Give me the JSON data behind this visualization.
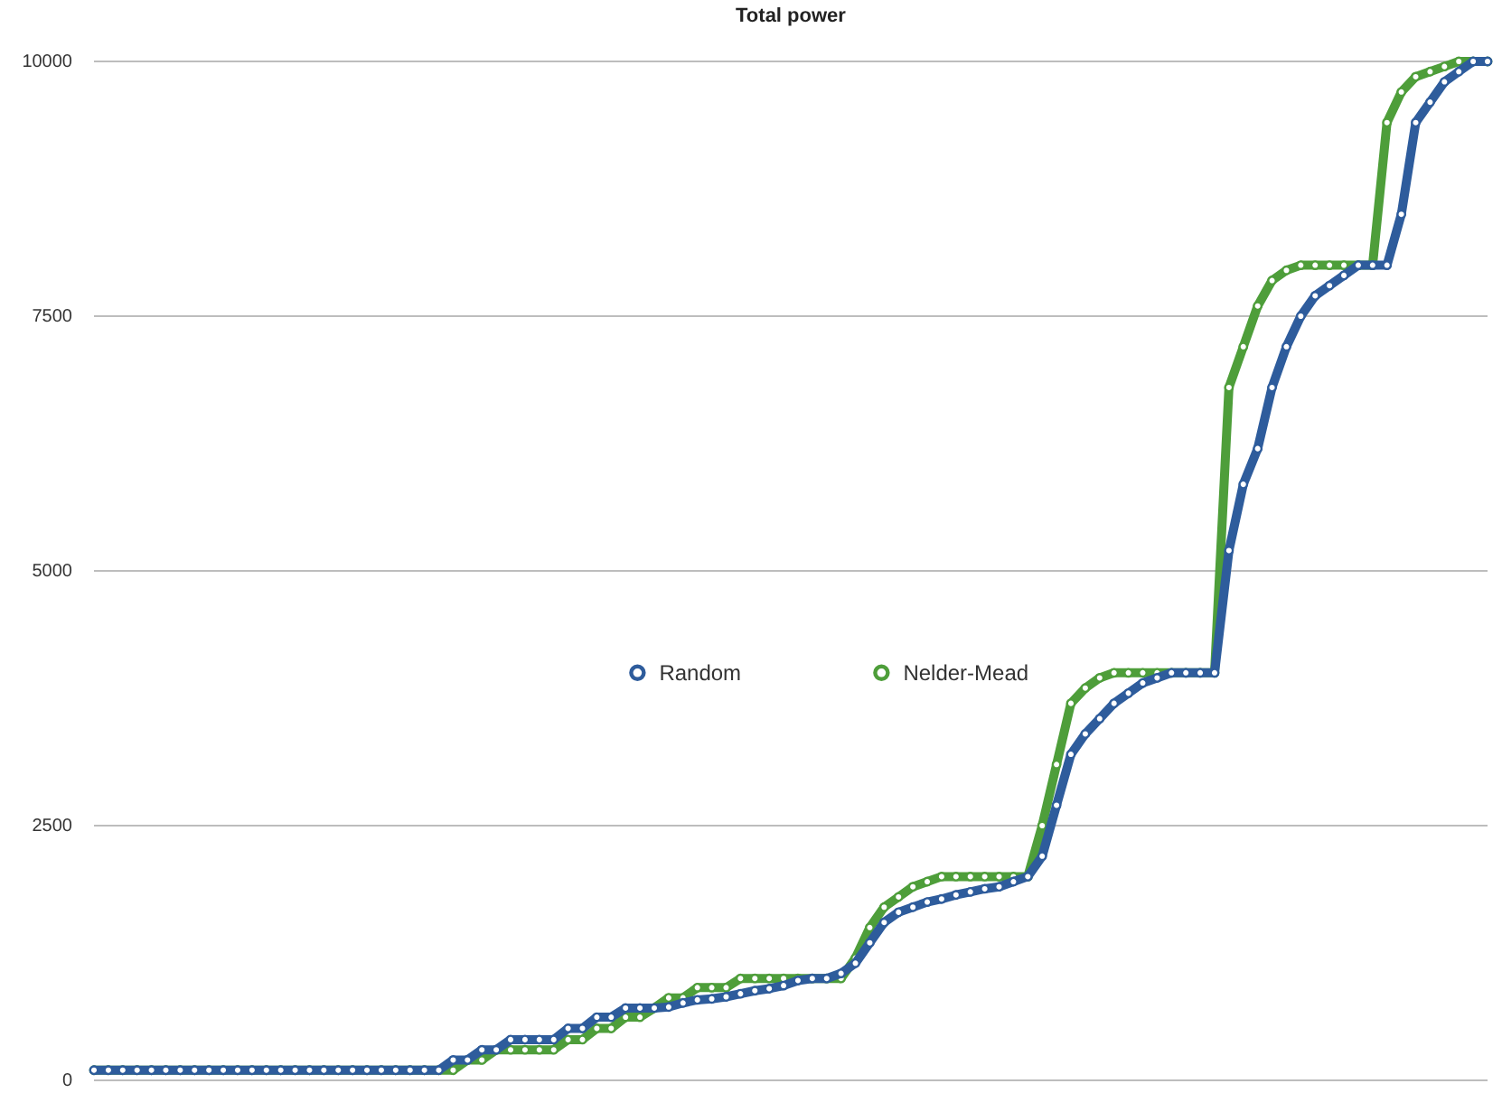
{
  "chart_data": {
    "type": "line",
    "title": "Total power",
    "categories": [
      null,
      null,
      null,
      null,
      null,
      null,
      null,
      null,
      null,
      null,
      null,
      null,
      null,
      null,
      null,
      null,
      null,
      null,
      null,
      null,
      null,
      null,
      null,
      null,
      null,
      null,
      null,
      null,
      null,
      null,
      null,
      null,
      null,
      null,
      null,
      null,
      null,
      null,
      null,
      null,
      null,
      null,
      null,
      null,
      null,
      null,
      null,
      null,
      null,
      null,
      null,
      null,
      null,
      null,
      null,
      null,
      null,
      null,
      null,
      null,
      null,
      null,
      null,
      null,
      null,
      null,
      null,
      null,
      null,
      null,
      null,
      null,
      null,
      null,
      null,
      null,
      null,
      null,
      null,
      null,
      null,
      null,
      null,
      null,
      null,
      null,
      null,
      null,
      null,
      null,
      null,
      null,
      null,
      null,
      null,
      null,
      null,
      null
    ],
    "series": [
      {
        "name": "Random",
        "color": "#2e5c9c",
        "values": [
          100,
          100,
          100,
          100,
          100,
          100,
          100,
          100,
          100,
          100,
          100,
          100,
          100,
          100,
          100,
          100,
          100,
          100,
          100,
          100,
          100,
          100,
          100,
          100,
          100,
          200,
          200,
          300,
          300,
          400,
          400,
          400,
          400,
          510,
          510,
          620,
          620,
          710,
          710,
          710,
          720,
          760,
          790,
          800,
          820,
          850,
          880,
          900,
          930,
          980,
          1000,
          1000,
          1050,
          1150,
          1350,
          1550,
          1650,
          1700,
          1750,
          1780,
          1820,
          1850,
          1880,
          1900,
          1950,
          2000,
          2200,
          2700,
          3200,
          3400,
          3550,
          3700,
          3800,
          3900,
          3950,
          4000,
          4000,
          4000,
          4000,
          5200,
          5850,
          6200,
          6800,
          7200,
          7500,
          7700,
          7800,
          7900,
          8000,
          8000,
          8000,
          8500,
          9400,
          9600,
          9800,
          9900,
          10000,
          10000
        ]
      },
      {
        "name": "Nelder-Mead",
        "color": "#4e9e3a",
        "values": [
          100,
          100,
          100,
          100,
          100,
          100,
          100,
          100,
          100,
          100,
          100,
          100,
          100,
          100,
          100,
          100,
          100,
          100,
          100,
          100,
          100,
          100,
          100,
          100,
          100,
          100,
          200,
          200,
          300,
          300,
          300,
          300,
          300,
          400,
          400,
          510,
          510,
          620,
          620,
          710,
          810,
          810,
          910,
          910,
          910,
          1000,
          1000,
          1000,
          1000,
          1000,
          1000,
          1000,
          1000,
          1200,
          1500,
          1700,
          1800,
          1900,
          1950,
          2000,
          2000,
          2000,
          2000,
          2000,
          2000,
          2000,
          2500,
          3100,
          3700,
          3850,
          3950,
          4000,
          4000,
          4000,
          4000,
          4000,
          4000,
          4000,
          4000,
          6800,
          7200,
          7600,
          7850,
          7950,
          8000,
          8000,
          8000,
          8000,
          8000,
          8000,
          9400,
          9700,
          9850,
          9900,
          9950,
          10000,
          10000,
          10000
        ]
      }
    ],
    "ylim": [
      0,
      10000
    ],
    "yticks": [
      0,
      2500,
      5000,
      7500,
      10000
    ],
    "grid": "y",
    "legend": "center",
    "marker": "circle",
    "line_style": "solid",
    "tick_labels": "y"
  }
}
